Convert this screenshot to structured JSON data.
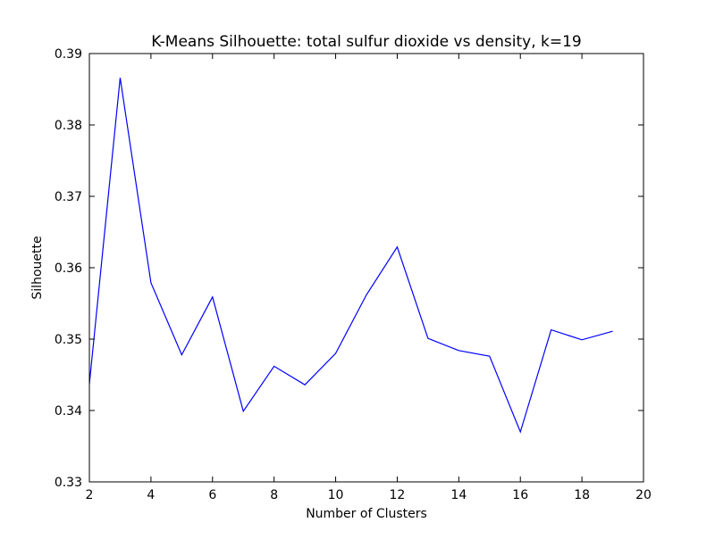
{
  "chart_data": {
    "type": "line",
    "title": "K-Means Silhouette: total sulfur dioxide vs density, k=19",
    "xlabel": "Number of Clusters",
    "ylabel": "Silhouette",
    "xlim": [
      2,
      20
    ],
    "ylim": [
      0.33,
      0.39
    ],
    "xticks": [
      2,
      4,
      6,
      8,
      10,
      12,
      14,
      16,
      18,
      20
    ],
    "yticks": [
      0.33,
      0.34,
      0.35,
      0.36,
      0.37,
      0.38,
      0.39
    ],
    "xtick_labels": [
      "2",
      "4",
      "6",
      "8",
      "10",
      "12",
      "14",
      "16",
      "18",
      "20"
    ],
    "ytick_labels": [
      "0.33",
      "0.34",
      "0.35",
      "0.36",
      "0.37",
      "0.38",
      "0.39"
    ],
    "grid": false,
    "legend": "none",
    "series": [
      {
        "color": "#0000ff",
        "x": [
          2,
          3,
          4,
          5,
          6,
          7,
          8,
          9,
          10,
          11,
          12,
          13,
          14,
          15,
          16,
          17,
          18,
          19
        ],
        "y": [
          0.3437,
          0.3866,
          0.3579,
          0.3478,
          0.3559,
          0.3399,
          0.3462,
          0.3436,
          0.348,
          0.3562,
          0.3629,
          0.3501,
          0.3484,
          0.3476,
          0.337,
          0.3513,
          0.3499,
          0.3511
        ]
      }
    ]
  }
}
